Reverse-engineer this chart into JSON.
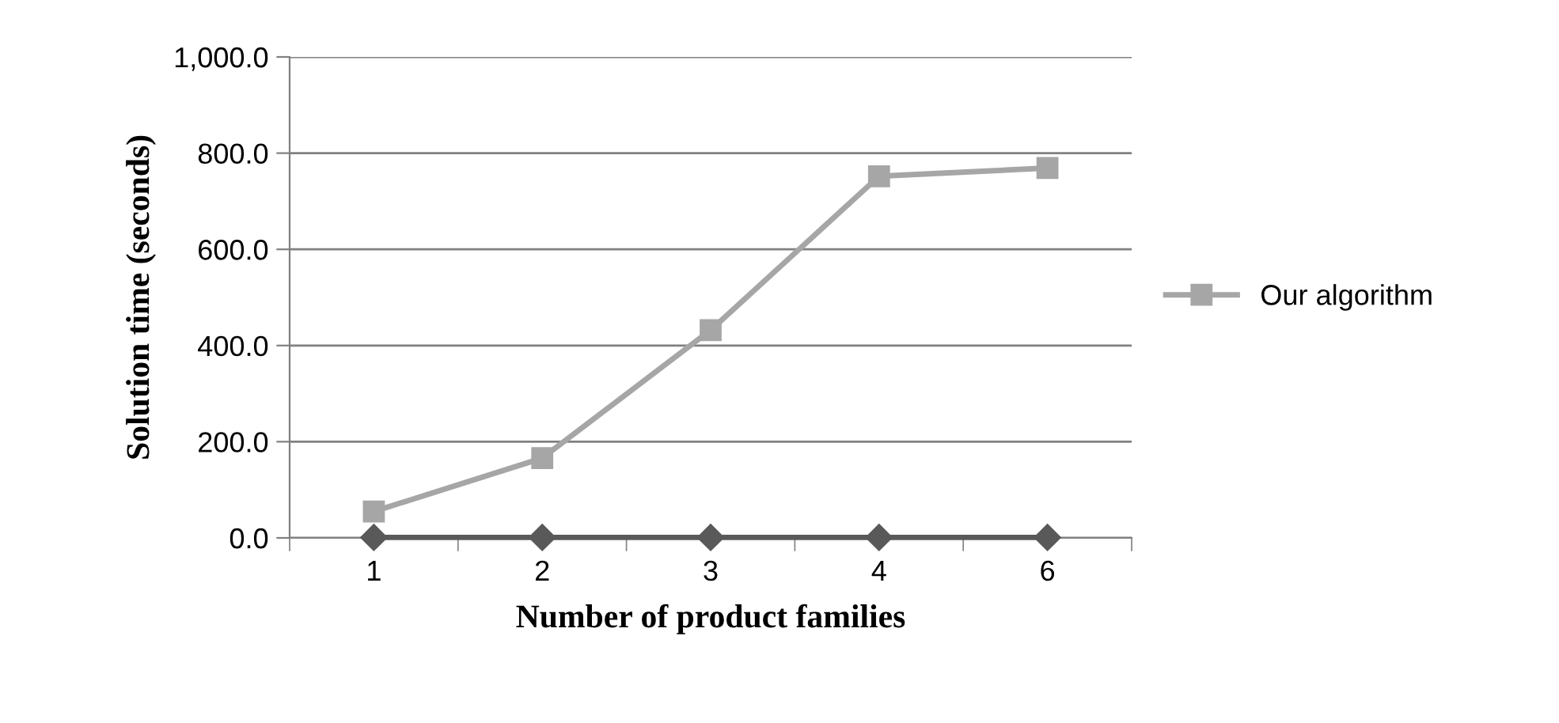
{
  "chart_data": {
    "type": "line",
    "xlabel": "Number of product families",
    "ylabel": "Solution time (seconds)",
    "categories": [
      "1",
      "2",
      "3",
      "4",
      "6"
    ],
    "series": [
      {
        "color": "#595959",
        "marker": "diamond",
        "values": [
          1,
          1,
          1,
          1,
          1
        ]
      },
      {
        "name": "Our algorithm",
        "color": "#a6a6a6",
        "marker": "square",
        "values": [
          55,
          166,
          432,
          752,
          769
        ]
      }
    ],
    "ylim": [
      0,
      1000
    ],
    "yticks": [
      {
        "value": 0,
        "label": "0.0"
      },
      {
        "value": 200,
        "label": "200.0"
      },
      {
        "value": 400,
        "label": "400.0"
      },
      {
        "value": 600,
        "label": "600.0"
      },
      {
        "value": 800,
        "label": "800.0"
      },
      {
        "value": 1000,
        "label": "1,000.0"
      }
    ],
    "grid": "y",
    "legend": "right"
  }
}
